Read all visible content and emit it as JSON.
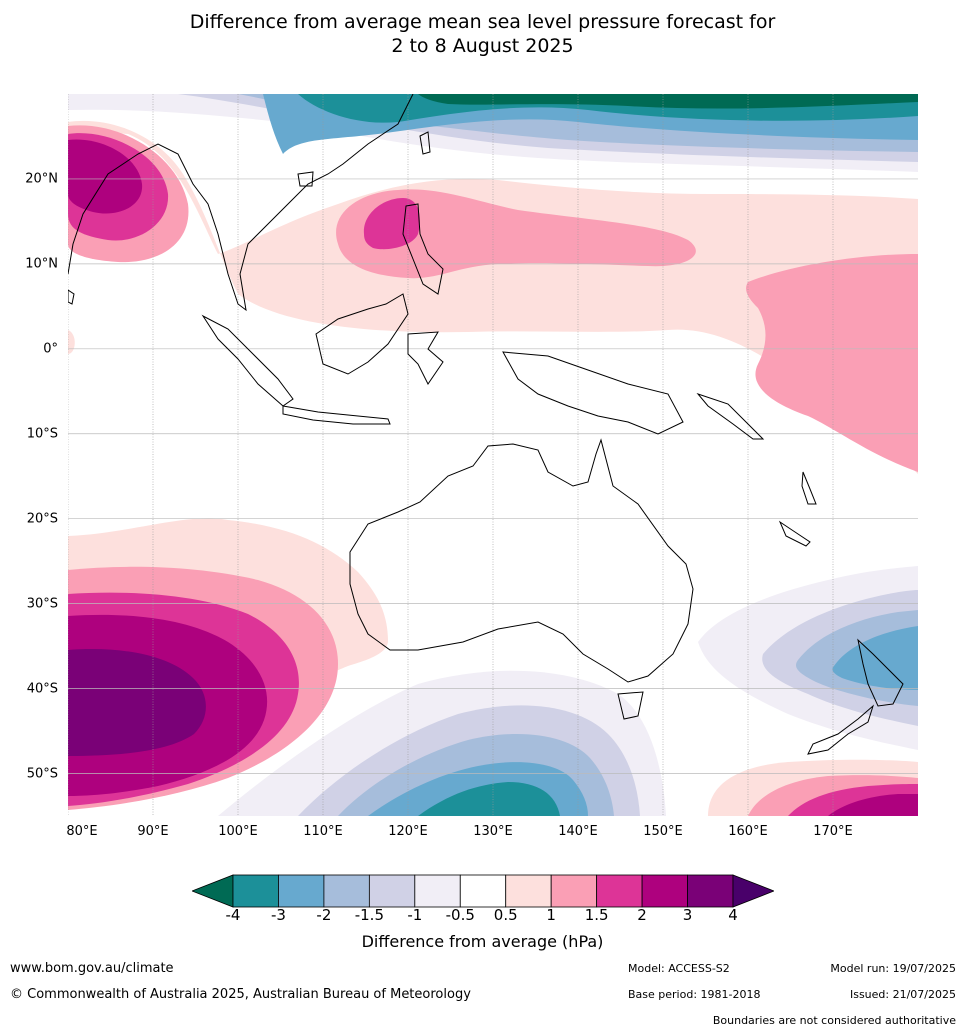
{
  "title_lines": [
    "Difference from average mean sea level pressure forecast for",
    "2 to 8 August 2025"
  ],
  "map": {
    "lon_range": [
      80,
      180
    ],
    "lat_range": [
      -55,
      30
    ],
    "lat_labels": [
      {
        "lat": 20,
        "text": "20°N"
      },
      {
        "lat": 10,
        "text": "10°N"
      },
      {
        "lat": 0,
        "text": "0°"
      },
      {
        "lat": -10,
        "text": "10°S"
      },
      {
        "lat": -20,
        "text": "20°S"
      },
      {
        "lat": -30,
        "text": "30°S"
      },
      {
        "lat": -40,
        "text": "40°S"
      },
      {
        "lat": -50,
        "text": "50°S"
      }
    ],
    "lon_labels": [
      {
        "lon": 80,
        "text": "80°E"
      },
      {
        "lon": 90,
        "text": "90°E"
      },
      {
        "lon": 100,
        "text": "100°E"
      },
      {
        "lon": 110,
        "text": "110°E"
      },
      {
        "lon": 120,
        "text": "120°E"
      },
      {
        "lon": 130,
        "text": "130°E"
      },
      {
        "lon": 140,
        "text": "140°E"
      },
      {
        "lon": 150,
        "text": "150°E"
      },
      {
        "lon": 160,
        "text": "160°E"
      },
      {
        "lon": 170,
        "text": "170°E"
      }
    ],
    "palette": {
      "lt4": "#006a54",
      "n4_3": "#1c9099",
      "n3_2": "#67a9cf",
      "n2_15": "#a6bddb",
      "n15_1": "#d0d1e6",
      "n1_05": "#f1eef6",
      "zero": "#ffffff",
      "p05_1": "#fde0dd",
      "p1_15": "#fa9fb5",
      "p15_2": "#dd3497",
      "p2_3": "#ae017e",
      "p3_4": "#7a0177",
      "gt4": "#49006a"
    }
  },
  "colorbar": {
    "colors": [
      "#1c9099",
      "#67a9cf",
      "#a6bddb",
      "#d0d1e6",
      "#f1eef6",
      "#ffffff",
      "#fde0dd",
      "#fa9fb5",
      "#dd3497",
      "#ae017e",
      "#7a0177"
    ],
    "under_color": "#006a54",
    "over_color": "#49006a",
    "ticks": [
      "-4",
      "-3",
      "-2",
      "-1.5",
      "-1",
      "-0.5",
      "0.5",
      "1",
      "1.5",
      "2",
      "3",
      "4"
    ],
    "label": "Difference from average (hPa)"
  },
  "footer": {
    "url": "www.bom.gov.au/climate",
    "copyright": "© Commonwealth of Australia 2025, Australian Bureau of Meteorology",
    "model": "Model: ACCESS-S2",
    "base_period": "Base period: 1981-2018",
    "model_run": "Model run: 19/07/2025",
    "issued": "Issued: 21/07/2025",
    "boundaries_note": "Boundaries are not considered authoritative"
  }
}
